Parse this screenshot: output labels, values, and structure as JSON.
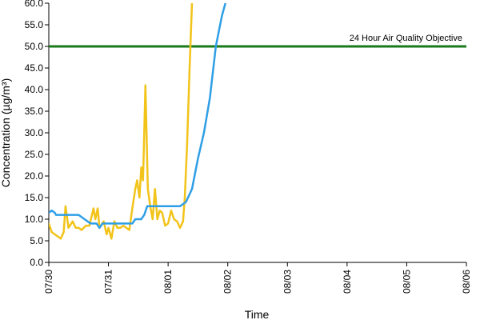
{
  "chart_data": {
    "type": "line",
    "xlabel": "Time",
    "ylabel": "Concentration (µg/m³)",
    "x_ticks": [
      "07/30",
      "07/31",
      "08/01",
      "08/02",
      "08/03",
      "08/04",
      "08/05",
      "08/06"
    ],
    "ylim": [
      0,
      60
    ],
    "y_ticks": [
      "0.0",
      "5.0",
      "10.0",
      "15.0",
      "20.0",
      "25.0",
      "30.0",
      "35.0",
      "40.0",
      "45.0",
      "50.0",
      "55.0",
      "60.0"
    ],
    "grid": false,
    "reference_line": {
      "label": "24 Hour Air Quality Objective",
      "value": 50,
      "color": "#1a7a1a"
    },
    "series": [
      {
        "color": "#f2c318",
        "points": [
          [
            0.0,
            9.0
          ],
          [
            0.05,
            7.0
          ],
          [
            0.1,
            6.5
          ],
          [
            0.15,
            6.0
          ],
          [
            0.2,
            5.5
          ],
          [
            0.25,
            7.0
          ],
          [
            0.28,
            13.0
          ],
          [
            0.33,
            8.0
          ],
          [
            0.4,
            9.5
          ],
          [
            0.45,
            8.0
          ],
          [
            0.5,
            8.0
          ],
          [
            0.55,
            7.5
          ],
          [
            0.62,
            8.5
          ],
          [
            0.68,
            8.5
          ],
          [
            0.75,
            12.5
          ],
          [
            0.78,
            10.0
          ],
          [
            0.82,
            12.5
          ],
          [
            0.85,
            8.0
          ],
          [
            0.92,
            9.5
          ],
          [
            0.97,
            6.5
          ],
          [
            1.0,
            8.0
          ],
          [
            1.05,
            5.5
          ],
          [
            1.1,
            9.5
          ],
          [
            1.15,
            8.0
          ],
          [
            1.2,
            8.0
          ],
          [
            1.25,
            8.5
          ],
          [
            1.3,
            8.0
          ],
          [
            1.35,
            7.5
          ],
          [
            1.4,
            12.5
          ],
          [
            1.45,
            17.0
          ],
          [
            1.48,
            19.0
          ],
          [
            1.52,
            15.0
          ],
          [
            1.55,
            22.0
          ],
          [
            1.58,
            19.0
          ],
          [
            1.62,
            41.0
          ],
          [
            1.66,
            17.0
          ],
          [
            1.7,
            13.0
          ],
          [
            1.74,
            10.0
          ],
          [
            1.78,
            17.0
          ],
          [
            1.82,
            10.0
          ],
          [
            1.86,
            12.0
          ],
          [
            1.9,
            11.5
          ],
          [
            1.95,
            8.5
          ],
          [
            2.0,
            9.0
          ],
          [
            2.05,
            12.0
          ],
          [
            2.1,
            10.0
          ],
          [
            2.15,
            9.5
          ],
          [
            2.2,
            8.0
          ],
          [
            2.25,
            9.5
          ],
          [
            2.28,
            15.0
          ],
          [
            2.32,
            28.0
          ],
          [
            2.36,
            45.0
          ],
          [
            2.4,
            60.0
          ],
          [
            2.45,
            70.0
          ]
        ]
      },
      {
        "color": "#2e9fe6",
        "points": [
          [
            0.0,
            11.5
          ],
          [
            0.05,
            12.0
          ],
          [
            0.1,
            11.5
          ],
          [
            0.12,
            11.0
          ],
          [
            0.3,
            11.0
          ],
          [
            0.5,
            11.0
          ],
          [
            0.6,
            10.0
          ],
          [
            0.7,
            9.0
          ],
          [
            0.8,
            9.0
          ],
          [
            0.85,
            8.0
          ],
          [
            0.9,
            9.0
          ],
          [
            1.2,
            9.0
          ],
          [
            1.4,
            9.0
          ],
          [
            1.45,
            10.0
          ],
          [
            1.55,
            10.0
          ],
          [
            1.6,
            11.0
          ],
          [
            1.65,
            13.0
          ],
          [
            1.8,
            13.0
          ],
          [
            2.0,
            13.0
          ],
          [
            2.2,
            13.0
          ],
          [
            2.3,
            14.0
          ],
          [
            2.4,
            17.0
          ],
          [
            2.5,
            24.0
          ],
          [
            2.6,
            30.0
          ],
          [
            2.7,
            38.0
          ],
          [
            2.8,
            50.0
          ],
          [
            2.9,
            57.0
          ],
          [
            3.0,
            62.0
          ]
        ]
      }
    ]
  }
}
